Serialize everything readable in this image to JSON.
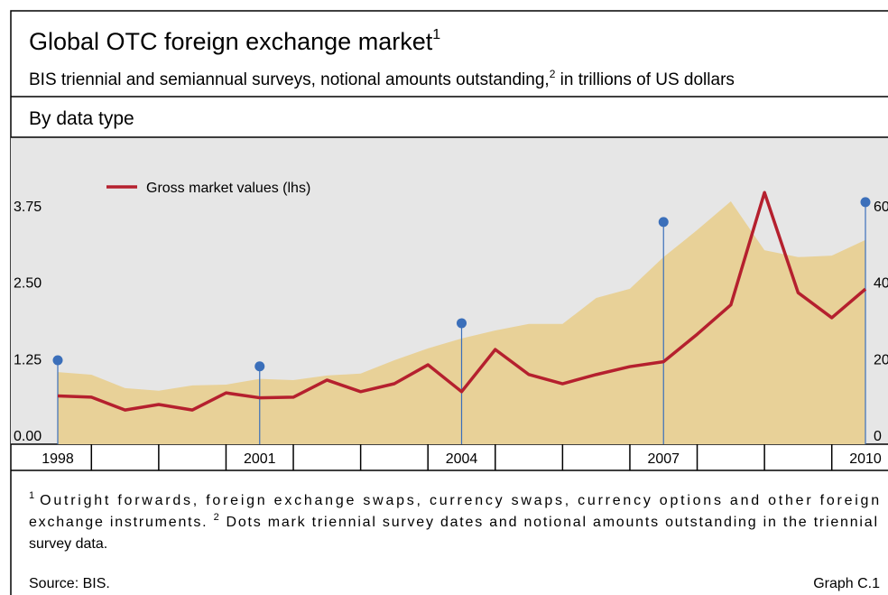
{
  "chart_data": {
    "type": "line",
    "title": "Global OTC foreign exchange market",
    "title_note": "1",
    "subtitle": "BIS triennial and semiannual surveys, notional amounts outstanding,",
    "subtitle_note": "2",
    "subtitle_end": " in trillions of US dollars",
    "panel_title": "By data type",
    "x": [
      1998,
      1998.5,
      1999,
      1999.5,
      2000,
      2000.5,
      2001,
      2001.5,
      2002,
      2002.5,
      2003,
      2003.5,
      2004,
      2004.5,
      2005,
      2005.5,
      2006,
      2006.5,
      2007,
      2007.5,
      2008,
      2008.5,
      2009,
      2009.5,
      2010
    ],
    "xlim": [
      1998,
      2010
    ],
    "xticks": [
      1998,
      2001,
      2004,
      2007,
      2010
    ],
    "xminor_ticks": [
      1998.5,
      1999.5,
      2000.5,
      2001.5,
      2002.5,
      2003.5,
      2004.5,
      2005.5,
      2006.5,
      2007.5,
      2008.5,
      2009.5
    ],
    "series": [
      {
        "name": "Gross market values (lhs)",
        "color": "#b5202e",
        "axis": "y",
        "values": [
          0.64,
          0.62,
          0.41,
          0.5,
          0.41,
          0.69,
          0.61,
          0.62,
          0.9,
          0.71,
          0.84,
          1.15,
          0.71,
          1.4,
          0.99,
          0.84,
          0.99,
          1.12,
          1.2,
          1.65,
          2.13,
          3.97,
          2.33,
          1.92,
          2.39
        ]
      }
    ],
    "area": {
      "color": "#e8d198",
      "axis": "y2",
      "values": [
        16.5,
        15.8,
        12.3,
        11.6,
        13.0,
        13.2,
        14.7,
        14.4,
        15.6,
        16.1,
        19.6,
        22.7,
        25.3,
        27.4,
        29.1,
        29.1,
        35.9,
        38.3,
        46.6,
        53.7,
        61.2,
        48.4,
        46.6,
        47.0,
        51.1
      ]
    },
    "dots": {
      "color": "#3b6fba",
      "axis": "y2",
      "x": [
        1998,
        2001,
        2004,
        2007,
        2010
      ],
      "values": [
        19.6,
        18.0,
        29.3,
        55.8,
        61.0
      ]
    },
    "ylim": [
      -0.15,
      4.875
    ],
    "yticks": [
      {
        "value": 0,
        "label": "0.00"
      },
      {
        "value": 1.25,
        "label": "1.25"
      },
      {
        "value": 2.5,
        "label": "2.50"
      },
      {
        "value": 3.75,
        "label": "3.75"
      }
    ],
    "y2lim": [
      -2.4,
      78
    ],
    "y2ticks": [
      0,
      20,
      40,
      60
    ],
    "legend": "upper left",
    "footnotes": [
      {
        "marker": "1",
        "text": "Outright forwards, foreign exchange swaps, currency swaps, currency options and other foreign exchange instruments."
      },
      {
        "marker": "2",
        "text": "Dots mark triennial survey dates and notional amounts outstanding in the triennial survey data."
      }
    ],
    "source": "Source: BIS.",
    "graph_id": "Graph C.1"
  }
}
